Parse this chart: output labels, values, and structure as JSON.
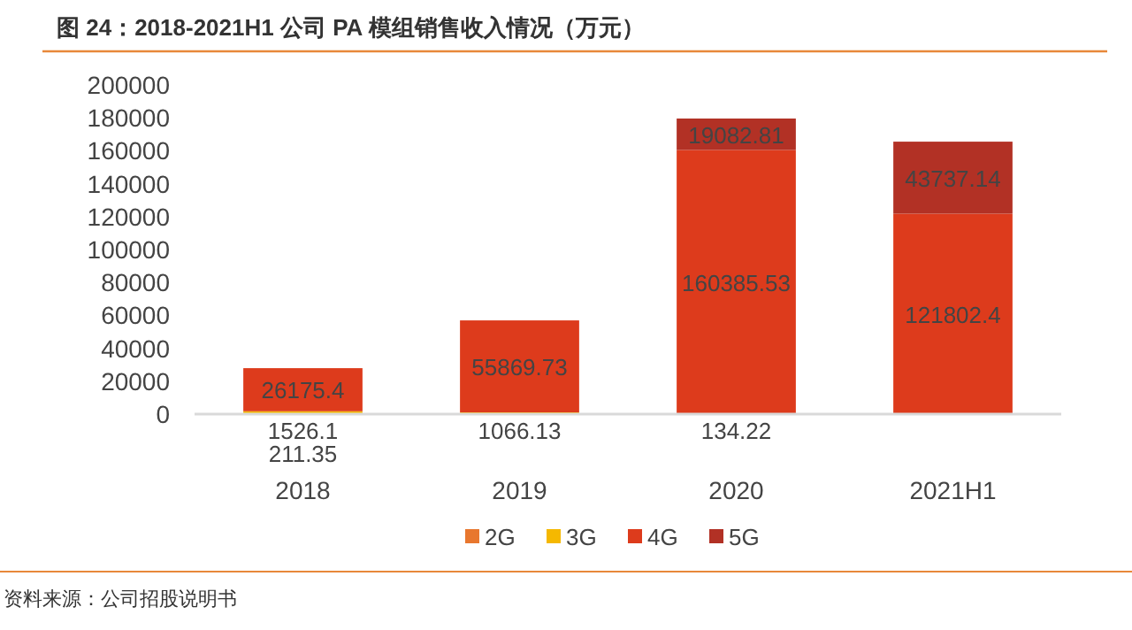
{
  "chart_data": {
    "type": "bar",
    "stacked": true,
    "title": "图 24：2018-2021H1 公司 PA 模组销售收入情况（万元）",
    "categories": [
      "2018",
      "2019",
      "2020",
      "2021H1"
    ],
    "series": [
      {
        "name": "2G",
        "color": "#e8772e",
        "values": [
          211.35,
          null,
          null,
          null
        ]
      },
      {
        "name": "3G",
        "color": "#f5b800",
        "values": [
          1526.1,
          1066.13,
          134.22,
          null
        ]
      },
      {
        "name": "4G",
        "color": "#dd3b1c",
        "values": [
          26175.4,
          55869.73,
          160385.53,
          121802.4
        ]
      },
      {
        "name": "5G",
        "color": "#b23125",
        "values": [
          null,
          null,
          19082.81,
          43737.14
        ]
      }
    ],
    "ylim": [
      0,
      200000
    ],
    "yticks": [
      0,
      20000,
      40000,
      60000,
      80000,
      100000,
      120000,
      140000,
      160000,
      180000,
      200000
    ],
    "data_labels": true,
    "legend": "bottom",
    "grid": false,
    "annotations": [
      "资料来源：公司招股说明书"
    ]
  }
}
